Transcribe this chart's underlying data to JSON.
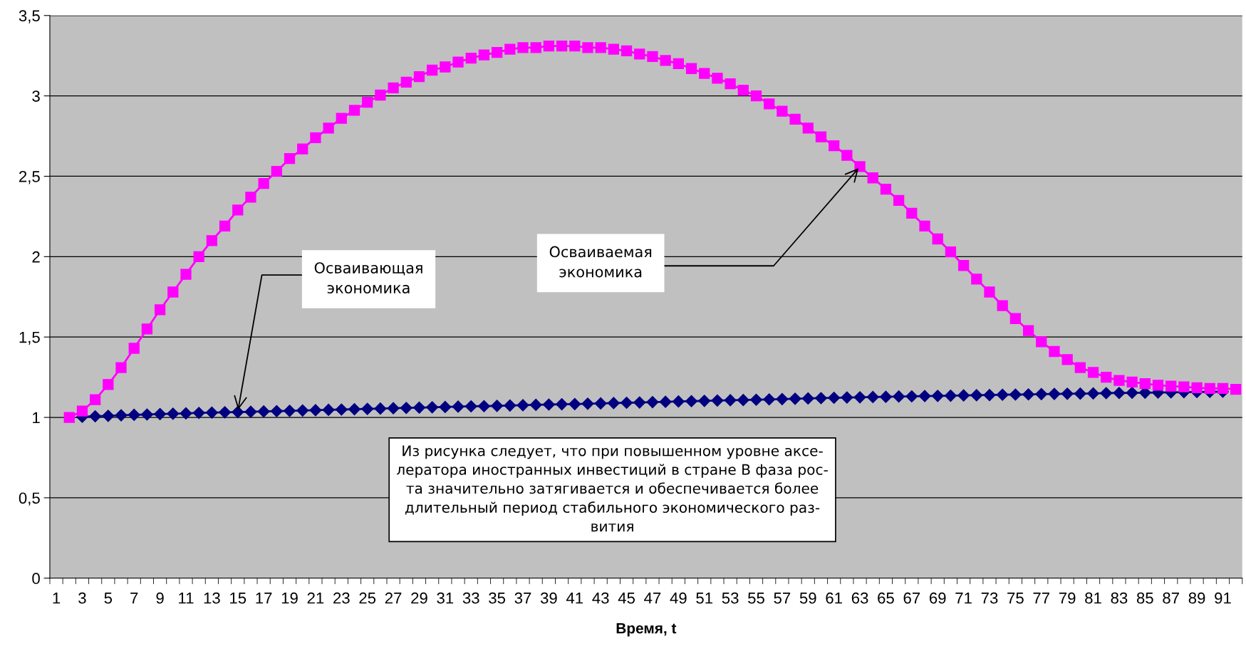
{
  "chart_data": {
    "type": "line",
    "xlabel": "Время, t",
    "categories": [
      "1",
      null,
      "3",
      null,
      "5",
      null,
      "7",
      null,
      "9",
      null,
      "11",
      null,
      "13",
      null,
      "15",
      null,
      "17",
      null,
      "19",
      null,
      "21",
      null,
      "23",
      null,
      "25",
      null,
      "27",
      null,
      "29",
      null,
      "31",
      null,
      "33",
      null,
      "35",
      null,
      "37",
      null,
      "39",
      null,
      "41",
      null,
      "43",
      null,
      "45",
      null,
      "47",
      null,
      "49",
      null,
      "51",
      null,
      "53",
      null,
      "55",
      null,
      "57",
      null,
      "59",
      null,
      "61",
      null,
      "63",
      null,
      "65",
      null,
      "67",
      null,
      "69",
      null,
      "71",
      null,
      "73",
      null,
      "75",
      null,
      "77",
      null,
      "79",
      null,
      "81",
      null,
      "83",
      null,
      "85",
      null,
      "87",
      null,
      "89",
      null,
      "91",
      null
    ],
    "series": [
      {
        "color": "#000080",
        "marker": "diamond",
        "values": [
          null,
          null,
          1.004,
          1.007,
          1.01,
          1.013,
          1.016,
          1.018,
          1.021,
          1.023,
          1.025,
          1.028,
          1.03,
          1.032,
          1.033,
          1.035,
          1.037,
          1.039,
          1.041,
          1.043,
          1.045,
          1.047,
          1.049,
          1.051,
          1.053,
          1.055,
          1.057,
          1.059,
          1.061,
          1.063,
          1.065,
          1.067,
          1.069,
          1.07,
          1.072,
          1.074,
          1.076,
          1.078,
          1.08,
          1.082,
          1.083,
          1.085,
          1.087,
          1.089,
          1.091,
          1.093,
          1.095,
          1.097,
          1.099,
          1.101,
          1.103,
          1.105,
          1.107,
          1.108,
          1.11,
          1.112,
          1.114,
          1.116,
          1.118,
          1.12,
          1.122,
          1.124,
          1.125,
          1.127,
          1.128,
          1.13,
          1.131,
          1.133,
          1.134,
          1.135,
          1.137,
          1.138,
          1.139,
          1.141,
          1.142,
          1.143,
          1.145,
          1.146,
          1.147,
          1.148,
          1.149,
          1.151,
          1.152,
          1.153,
          1.154,
          1.155,
          1.156,
          1.157,
          1.158,
          1.159,
          1.16,
          null
        ]
      },
      {
        "color": "#ff00ff",
        "marker": "square",
        "values": [
          null,
          1.0,
          1.04,
          1.11,
          1.205,
          1.31,
          1.43,
          1.55,
          1.67,
          1.78,
          1.89,
          2.0,
          2.1,
          2.19,
          2.29,
          2.37,
          2.455,
          2.53,
          2.61,
          2.67,
          2.74,
          2.8,
          2.86,
          2.91,
          2.96,
          3.005,
          3.05,
          3.085,
          3.12,
          3.16,
          3.18,
          3.21,
          3.235,
          3.255,
          3.27,
          3.29,
          3.3,
          3.3,
          3.31,
          3.31,
          3.31,
          3.3,
          3.3,
          3.29,
          3.28,
          3.26,
          3.245,
          3.22,
          3.2,
          3.17,
          3.14,
          3.11,
          3.075,
          3.035,
          3.0,
          2.95,
          2.905,
          2.855,
          2.8,
          2.745,
          2.69,
          2.63,
          2.56,
          2.49,
          2.42,
          2.35,
          2.27,
          2.19,
          2.11,
          2.03,
          1.945,
          1.86,
          1.78,
          1.695,
          1.615,
          1.54,
          1.47,
          1.41,
          1.36,
          1.31,
          1.28,
          1.25,
          1.23,
          1.22,
          1.21,
          1.2,
          1.195,
          1.19,
          1.185,
          1.18,
          1.18,
          1.175
        ]
      }
    ],
    "ylim": [
      0,
      3.5
    ],
    "yticks": [
      0,
      {
        "value": 0.5,
        "label": "0,5"
      },
      1,
      {
        "value": 1.5,
        "label": "1,5"
      },
      2,
      {
        "value": 2.5,
        "label": "2,5"
      },
      3,
      {
        "value": 3.5,
        "label": "3,5"
      }
    ],
    "grid": "y",
    "line_style": "solid",
    "annotations": [
      {
        "text": "Осваивающая\nэкономика",
        "x": "15",
        "y": 1.035
      },
      {
        "text": "Осваиваемая\nэкономика",
        "x": "63",
        "y": 2.56
      },
      "Из рисунка следует, что при повышенном уровне аксе-\nлератора иностранных инвестиций в стране В фаза рос-\nта значительно затягивается и обеспечивается более\nдлительный период стабильного экономического раз-\nвития"
    ]
  }
}
